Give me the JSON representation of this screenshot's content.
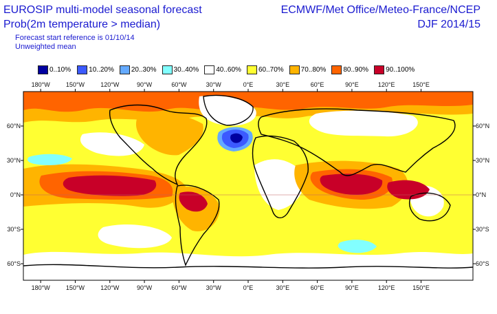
{
  "header": {
    "title_line1": "EUROSIP multi-model seasonal forecast",
    "title_line2": "Prob(2m temperature > median)",
    "subtitle_line1": "Forecast start reference is 01/10/14",
    "subtitle_line2": "Unweighted mean",
    "source": "ECMWF/Met Office/Meteo-France/NCEP",
    "period": "DJF 2014/15"
  },
  "legend": [
    {
      "label": "0..10%",
      "color": "#0000a0"
    },
    {
      "label": "10..20%",
      "color": "#3c5aff"
    },
    {
      "label": "20..30%",
      "color": "#64aaff"
    },
    {
      "label": "30..40%",
      "color": "#82ffff"
    },
    {
      "label": "40..60%",
      "color": "#ffffff"
    },
    {
      "label": "60..70%",
      "color": "#ffff32"
    },
    {
      "label": "70..80%",
      "color": "#ffb400"
    },
    {
      "label": "80..90%",
      "color": "#ff6400"
    },
    {
      "label": "90..100%",
      "color": "#c80028"
    }
  ],
  "axes": {
    "top_lon_labels": [
      "180°W",
      "150°W",
      "120°W",
      "90°W",
      "60°W",
      "30°W",
      "0°E",
      "30°E",
      "60°E",
      "90°E",
      "120°E",
      "150°E"
    ],
    "bottom_lon_labels": [
      "180°W",
      "150°W",
      "120°W",
      "90°W",
      "60°W",
      "30°W",
      "0°E",
      "30°E",
      "60°E",
      "90°E",
      "120°E",
      "150°E"
    ],
    "left_lat_labels": [
      "60°N",
      "30°N",
      "0°N",
      "30°S",
      "60°S"
    ],
    "right_lat_labels": [
      "60°N",
      "30°N",
      "0°N",
      "30°S",
      "60°S"
    ]
  }
}
